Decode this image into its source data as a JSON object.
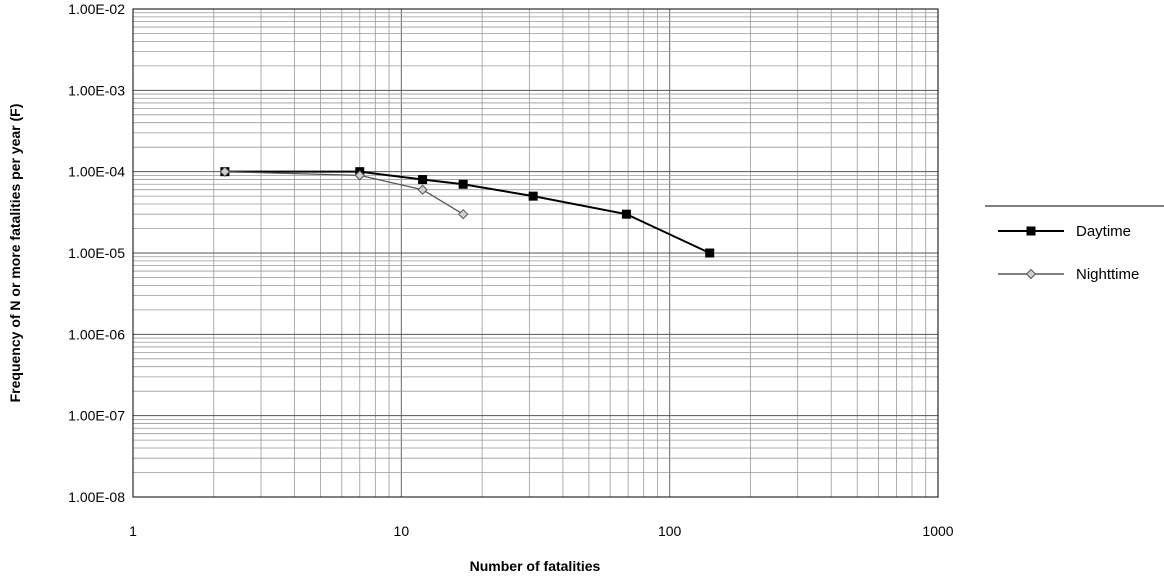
{
  "chart_data": {
    "type": "line",
    "xlabel": "Number of fatalities",
    "ylabel": "Frequency of N or more fatalities per year (F)",
    "x_scale": "log",
    "y_scale": "log",
    "xlim": [
      1,
      1000
    ],
    "ylim": [
      1e-08,
      0.01
    ],
    "x_ticks": [
      1,
      10,
      100,
      1000
    ],
    "x_tick_labels": [
      "1",
      "10",
      "100",
      "1000"
    ],
    "y_ticks": [
      1e-08,
      1e-07,
      1e-06,
      1e-05,
      0.0001,
      0.001,
      0.01
    ],
    "y_tick_labels": [
      "1.00E-08",
      "1.00E-07",
      "1.00E-06",
      "1.00E-05",
      "1.00E-04",
      "1.00E-03",
      "1.00E-02"
    ],
    "grid": true,
    "legend_position": "right",
    "series": [
      {
        "name": "Daytime",
        "marker": "square",
        "color": "#000000",
        "x": [
          2.2,
          7,
          12,
          17,
          31,
          69,
          141
        ],
        "y": [
          0.0001,
          0.0001,
          8e-05,
          7e-05,
          5e-05,
          3e-05,
          1e-05
        ]
      },
      {
        "name": "Nighttime",
        "marker": "diamond",
        "color": "#8a8a8a",
        "x": [
          2.2,
          7,
          12,
          17
        ],
        "y": [
          0.0001,
          9e-05,
          6e-05,
          3e-05
        ]
      }
    ]
  }
}
